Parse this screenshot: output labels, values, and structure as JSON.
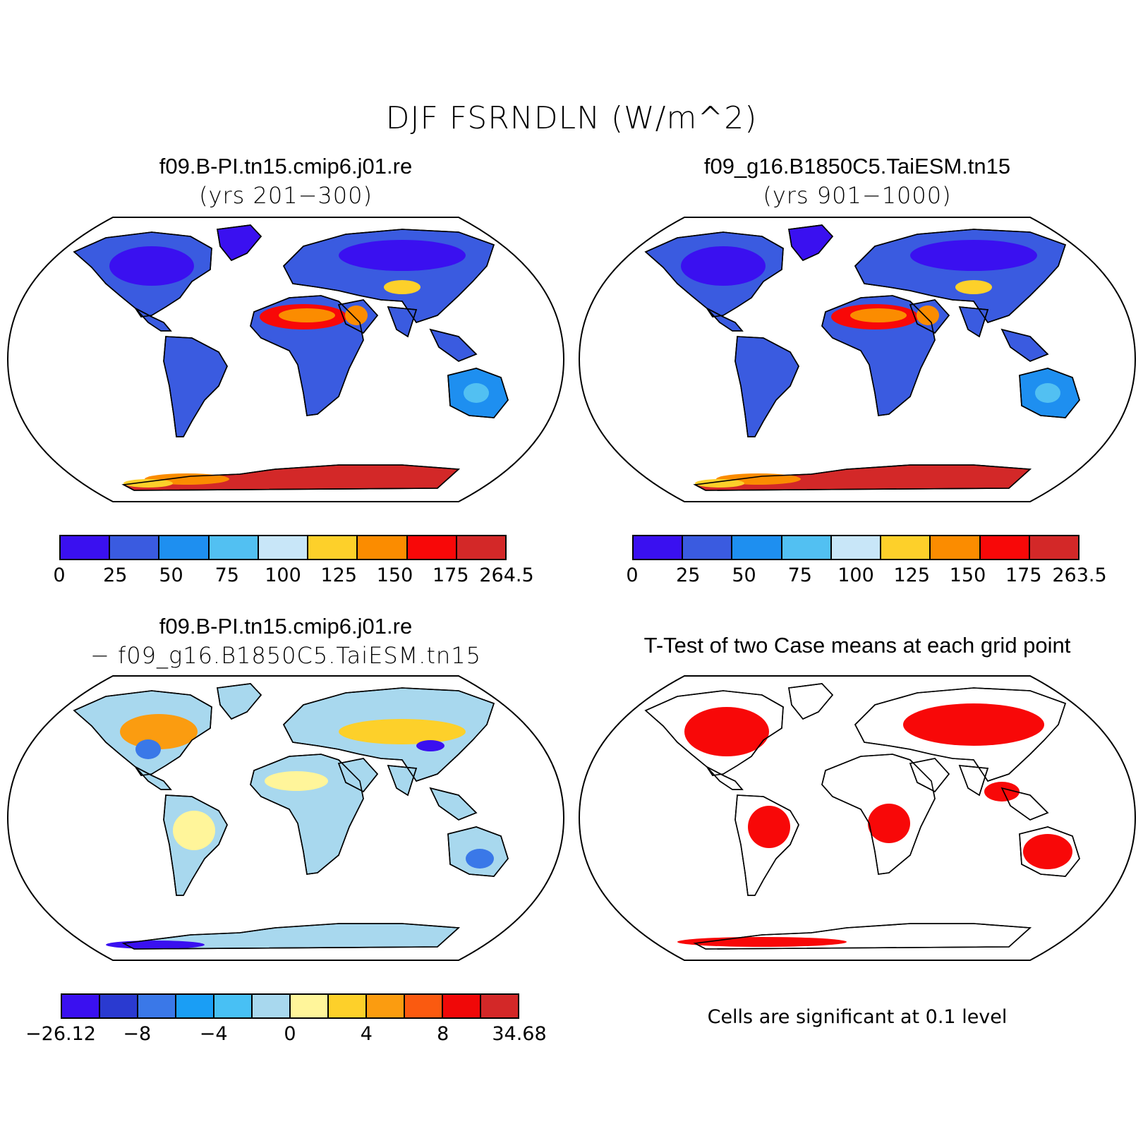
{
  "main_title": "DJF FSRNDLN (W/m^2)",
  "panels": [
    {
      "title": "f09.B-PI.tn15.cmip6.j01.re",
      "subtitle": "(yrs 201−300)",
      "colorbar": {
        "colors": [
          "#3a10f0",
          "#3a5be0",
          "#1e8ff0",
          "#52c0f2",
          "#c8e6f8",
          "#fdd02a",
          "#fb8c00",
          "#f80808",
          "#d32828"
        ],
        "labels": [
          "0",
          "25",
          "50",
          "75",
          "100",
          "125",
          "150",
          "175",
          "264.5"
        ]
      }
    },
    {
      "title": "f09_g16.B1850C5.TaiESM.tn15",
      "subtitle": "(yrs 901−1000)",
      "colorbar": {
        "colors": [
          "#3a10f0",
          "#3a5be0",
          "#1e8ff0",
          "#52c0f2",
          "#c8e6f8",
          "#fdd02a",
          "#fb8c00",
          "#f80808",
          "#d32828"
        ],
        "labels": [
          "0",
          "25",
          "50",
          "75",
          "100",
          "125",
          "150",
          "175",
          "263.5"
        ]
      }
    },
    {
      "title": "f09.B-PI.tn15.cmip6.j01.re",
      "subtitle": "− f09_g16.B1850C5.TaiESM.tn15",
      "colorbar": {
        "colors": [
          "#3a10f0",
          "#2a3ad0",
          "#3a78e8",
          "#1a9ef5",
          "#48c0f4",
          "#a8d8ee",
          "#fff59a",
          "#fdd02a",
          "#fb9c10",
          "#fa5a10",
          "#f00808",
          "#d32828"
        ],
        "labels": [
          "−26.12",
          "−8",
          "−4",
          "0",
          "4",
          "8",
          "34.68"
        ]
      }
    },
    {
      "title": "T-Test of two Case means at each grid point",
      "note": "Cells are significant at 0.1 level"
    }
  ]
}
